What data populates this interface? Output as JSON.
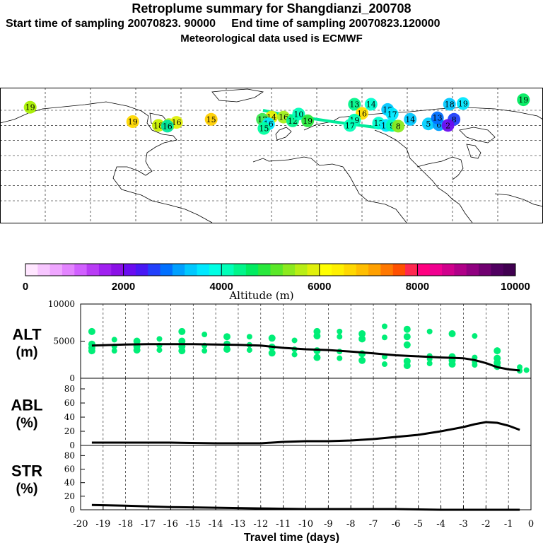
{
  "header": {
    "title": "Retroplume summary for Shangdianzi_200708",
    "sampling": "Start time of sampling 20070823. 90000     End time of sampling 20070823.120000",
    "met": "Meteorological data used is ECMWF"
  },
  "colorbar": {
    "label": "Altitude (m)",
    "ticks": [
      "0",
      "2000",
      "4000",
      "6000",
      "8000",
      "10000"
    ],
    "colors": [
      "#ffe6ff",
      "#f7c6ff",
      "#efa6ff",
      "#e384ff",
      "#d160ff",
      "#b93cf5",
      "#a020f0",
      "#8a10e6",
      "#6a0cf0",
      "#4818f4",
      "#2240fb",
      "#0070ff",
      "#00a0ff",
      "#00c8ff",
      "#00e8ff",
      "#00ffe4",
      "#00ffb8",
      "#00f58a",
      "#00eb60",
      "#28e83c",
      "#5ae828",
      "#8cea1e",
      "#b8ee14",
      "#e0f00a",
      "#ffff00",
      "#fff000",
      "#ffd800",
      "#ffbe00",
      "#ffa000",
      "#ff7800",
      "#ff5000",
      "#ff2850",
      "#ff0080",
      "#f00090",
      "#d0008c",
      "#b00088",
      "#900080",
      "#700070",
      "#500060",
      "#400050"
    ]
  },
  "map": {
    "plume_labels": [
      {
        "text": "19",
        "lon": -160,
        "lat": 64,
        "color": "#a9f000"
      },
      {
        "text": "19",
        "lon": -92,
        "lat": 45,
        "color": "#ffd800"
      },
      {
        "text": "18",
        "lon": -75,
        "lat": 40,
        "color": "#c9f000"
      },
      {
        "text": "17",
        "lon": -68,
        "lat": 41,
        "color": "#b8ee14"
      },
      {
        "text": "16",
        "lon": -63,
        "lat": 44,
        "color": "#e0f00a"
      },
      {
        "text": "16",
        "lon": -69,
        "lat": 39,
        "color": "#00e8a0"
      },
      {
        "text": "15",
        "lon": -40,
        "lat": 48,
        "color": "#ffd000"
      },
      {
        "text": "14",
        "lon": 0,
        "lat": 51,
        "color": "#e8f000"
      },
      {
        "text": "16",
        "lon": 8,
        "lat": 51,
        "color": "#a8ee1e"
      },
      {
        "text": "17",
        "lon": -6,
        "lat": 48,
        "color": "#3ce850"
      },
      {
        "text": "16",
        "lon": -2,
        "lat": 42,
        "color": "#00e8ff"
      },
      {
        "text": "15",
        "lon": -5,
        "lat": 36,
        "color": "#00ffa0"
      },
      {
        "text": "12",
        "lon": 14,
        "lat": 46,
        "color": "#00f58a"
      },
      {
        "text": "10",
        "lon": 18,
        "lat": 55,
        "color": "#00ffb8"
      },
      {
        "text": "19",
        "lon": 24,
        "lat": 46,
        "color": "#28e83c"
      },
      {
        "text": "13",
        "lon": 55,
        "lat": 68,
        "color": "#00f58a"
      },
      {
        "text": "14",
        "lon": 66,
        "lat": 68,
        "color": "#00ffd0"
      },
      {
        "text": "16",
        "lon": 60,
        "lat": 56,
        "color": "#ffe000"
      },
      {
        "text": "19",
        "lon": 55,
        "lat": 47,
        "color": "#00ffb8"
      },
      {
        "text": "17",
        "lon": 52,
        "lat": 40,
        "color": "#00ffb8"
      },
      {
        "text": "13",
        "lon": 71,
        "lat": 43,
        "color": "#00ffd0"
      },
      {
        "text": "10",
        "lon": 76,
        "lat": 40,
        "color": "#00e8ff"
      },
      {
        "text": "9",
        "lon": 80,
        "lat": 40,
        "color": "#00ffb8"
      },
      {
        "text": "8",
        "lon": 84,
        "lat": 39,
        "color": "#8cea1e"
      },
      {
        "text": "15",
        "lon": 77,
        "lat": 61,
        "color": "#00c8ff"
      },
      {
        "text": "17",
        "lon": 80,
        "lat": 55,
        "color": "#00e8ff"
      },
      {
        "text": "14",
        "lon": 92,
        "lat": 48,
        "color": "#00c8ff"
      },
      {
        "text": "5",
        "lon": 104,
        "lat": 42,
        "color": "#00d0ff"
      },
      {
        "text": "6",
        "lon": 111,
        "lat": 41,
        "color": "#00a0ff"
      },
      {
        "text": "18",
        "lon": 118,
        "lat": 68,
        "color": "#00c8ff"
      },
      {
        "text": "19",
        "lon": 127,
        "lat": 69,
        "color": "#00e8ff"
      },
      {
        "text": "13",
        "lon": 110,
        "lat": 50,
        "color": "#0070ff"
      },
      {
        "text": "8",
        "lon": 121,
        "lat": 48,
        "color": "#2240fb"
      },
      {
        "text": "2",
        "lon": 117,
        "lat": 40,
        "color": "#6a0cf0"
      },
      {
        "text": "19",
        "lon": 167,
        "lat": 74,
        "color": "#00eb60"
      }
    ]
  },
  "chart_data": [
    {
      "type": "scatter",
      "name": "ALT",
      "ylabel": "ALT (m)",
      "xlabel": "Travel time (days)",
      "xlim": [
        -20,
        0
      ],
      "ylim": [
        0,
        10000
      ],
      "yticks": [
        "10000",
        "5000",
        "0"
      ],
      "median_line": {
        "x": [
          -19.5,
          -19,
          -18,
          -17,
          -16,
          -15,
          -14,
          -13,
          -12,
          -11,
          -10,
          -9,
          -8,
          -7,
          -6,
          -5,
          -4,
          -3.5,
          -3,
          -2.5,
          -2,
          -1.5,
          -1,
          -0.5
        ],
        "y": [
          4400,
          4450,
          4550,
          4600,
          4600,
          4600,
          4550,
          4500,
          4400,
          4100,
          3900,
          3800,
          3600,
          3350,
          3100,
          2950,
          2800,
          2750,
          2700,
          2450,
          2050,
          1500,
          1200,
          1050
        ]
      },
      "points": [
        {
          "x": -19.5,
          "y": 6300
        },
        {
          "x": -19.5,
          "y": 4600
        },
        {
          "x": -19.5,
          "y": 4100
        },
        {
          "x": -19.5,
          "y": 3700
        },
        {
          "x": -18.5,
          "y": 5200
        },
        {
          "x": -18.5,
          "y": 4300
        },
        {
          "x": -18.5,
          "y": 3700
        },
        {
          "x": -17.5,
          "y": 5000
        },
        {
          "x": -17.5,
          "y": 4300
        },
        {
          "x": -17.5,
          "y": 3800
        },
        {
          "x": -16.5,
          "y": 5300
        },
        {
          "x": -16.5,
          "y": 4400
        },
        {
          "x": -16.5,
          "y": 3800
        },
        {
          "x": -15.5,
          "y": 6300
        },
        {
          "x": -15.5,
          "y": 5000
        },
        {
          "x": -15.5,
          "y": 4300
        },
        {
          "x": -15.5,
          "y": 3700
        },
        {
          "x": -14.5,
          "y": 5900
        },
        {
          "x": -14.5,
          "y": 4400
        },
        {
          "x": -14.5,
          "y": 3700
        },
        {
          "x": -13.5,
          "y": 5600
        },
        {
          "x": -13.5,
          "y": 4600
        },
        {
          "x": -13.5,
          "y": 3900
        },
        {
          "x": -12.5,
          "y": 5600
        },
        {
          "x": -12.5,
          "y": 4500
        },
        {
          "x": -12.5,
          "y": 3800
        },
        {
          "x": -11.5,
          "y": 5400
        },
        {
          "x": -11.5,
          "y": 4200
        },
        {
          "x": -11.5,
          "y": 3400
        },
        {
          "x": -10.5,
          "y": 5100
        },
        {
          "x": -10.5,
          "y": 3900
        },
        {
          "x": -10.5,
          "y": 3200
        },
        {
          "x": -9.5,
          "y": 6300
        },
        {
          "x": -9.5,
          "y": 5700
        },
        {
          "x": -9.5,
          "y": 3700
        },
        {
          "x": -9.5,
          "y": 2800
        },
        {
          "x": -8.5,
          "y": 6300
        },
        {
          "x": -8.5,
          "y": 5600
        },
        {
          "x": -8.5,
          "y": 3600
        },
        {
          "x": -8.5,
          "y": 2700
        },
        {
          "x": -7.5,
          "y": 6000
        },
        {
          "x": -7.5,
          "y": 5300
        },
        {
          "x": -7.5,
          "y": 3300
        },
        {
          "x": -7.5,
          "y": 2400
        },
        {
          "x": -6.5,
          "y": 7000
        },
        {
          "x": -6.5,
          "y": 5500
        },
        {
          "x": -6.5,
          "y": 2900
        },
        {
          "x": -6.5,
          "y": 1900
        },
        {
          "x": -5.5,
          "y": 6600
        },
        {
          "x": -5.5,
          "y": 5600
        },
        {
          "x": -5.5,
          "y": 4500
        },
        {
          "x": -5.5,
          "y": 2300
        },
        {
          "x": -5.5,
          "y": 1700
        },
        {
          "x": -4.5,
          "y": 6300
        },
        {
          "x": -4.5,
          "y": 3000
        },
        {
          "x": -4.5,
          "y": 2600
        },
        {
          "x": -4.5,
          "y": 2000
        },
        {
          "x": -3.5,
          "y": 6000
        },
        {
          "x": -3.5,
          "y": 2900
        },
        {
          "x": -3.5,
          "y": 2400
        },
        {
          "x": -3.5,
          "y": 1900
        },
        {
          "x": -2.5,
          "y": 5700
        },
        {
          "x": -2.5,
          "y": 2800
        },
        {
          "x": -2.5,
          "y": 2200
        },
        {
          "x": -2.5,
          "y": 1800
        },
        {
          "x": -1.5,
          "y": 3700
        },
        {
          "x": -1.5,
          "y": 2700
        },
        {
          "x": -1.5,
          "y": 2100
        },
        {
          "x": -1.5,
          "y": 1600
        },
        {
          "x": -0.5,
          "y": 1500
        },
        {
          "x": -0.5,
          "y": 1000
        },
        {
          "x": -0.2,
          "y": 1100
        }
      ]
    },
    {
      "type": "line",
      "name": "ABL",
      "ylabel": "ABL (%)",
      "xlim": [
        -20,
        0
      ],
      "ylim": [
        0,
        90
      ],
      "yticks": [
        "80",
        "60",
        "40",
        "20",
        "0"
      ],
      "x": [
        -19.5,
        -18,
        -16,
        -14,
        -12,
        -11,
        -10,
        -9,
        -8,
        -7,
        -6,
        -5,
        -4,
        -3,
        -2.5,
        -2,
        -1.5,
        -1,
        -0.5
      ],
      "y": [
        4,
        4,
        4,
        3,
        3,
        5,
        6,
        6,
        7,
        9,
        12,
        15,
        20,
        26,
        30,
        33,
        32,
        28,
        22
      ]
    },
    {
      "type": "line",
      "name": "STR",
      "ylabel": "STR (%)",
      "xlabel": "Travel time (days)",
      "xlim": [
        -20,
        0
      ],
      "ylim": [
        0,
        90
      ],
      "yticks": [
        "80",
        "60",
        "40",
        "20",
        "0"
      ],
      "xticks": [
        "-20",
        "-19",
        "-18",
        "-17",
        "-16",
        "-15",
        "-14",
        "-13",
        "-12",
        "-11",
        "-10",
        "-9",
        "-8",
        "-7",
        "-6",
        "-5",
        "-4",
        "-3",
        "-2",
        "-1",
        "0"
      ],
      "x": [
        -19.5,
        -18,
        -16,
        -14,
        -12,
        -10,
        -8,
        -6,
        -4,
        -2,
        -0.5
      ],
      "y": [
        7,
        6,
        4,
        3,
        2,
        1,
        1,
        1,
        0,
        0,
        0
      ]
    }
  ]
}
